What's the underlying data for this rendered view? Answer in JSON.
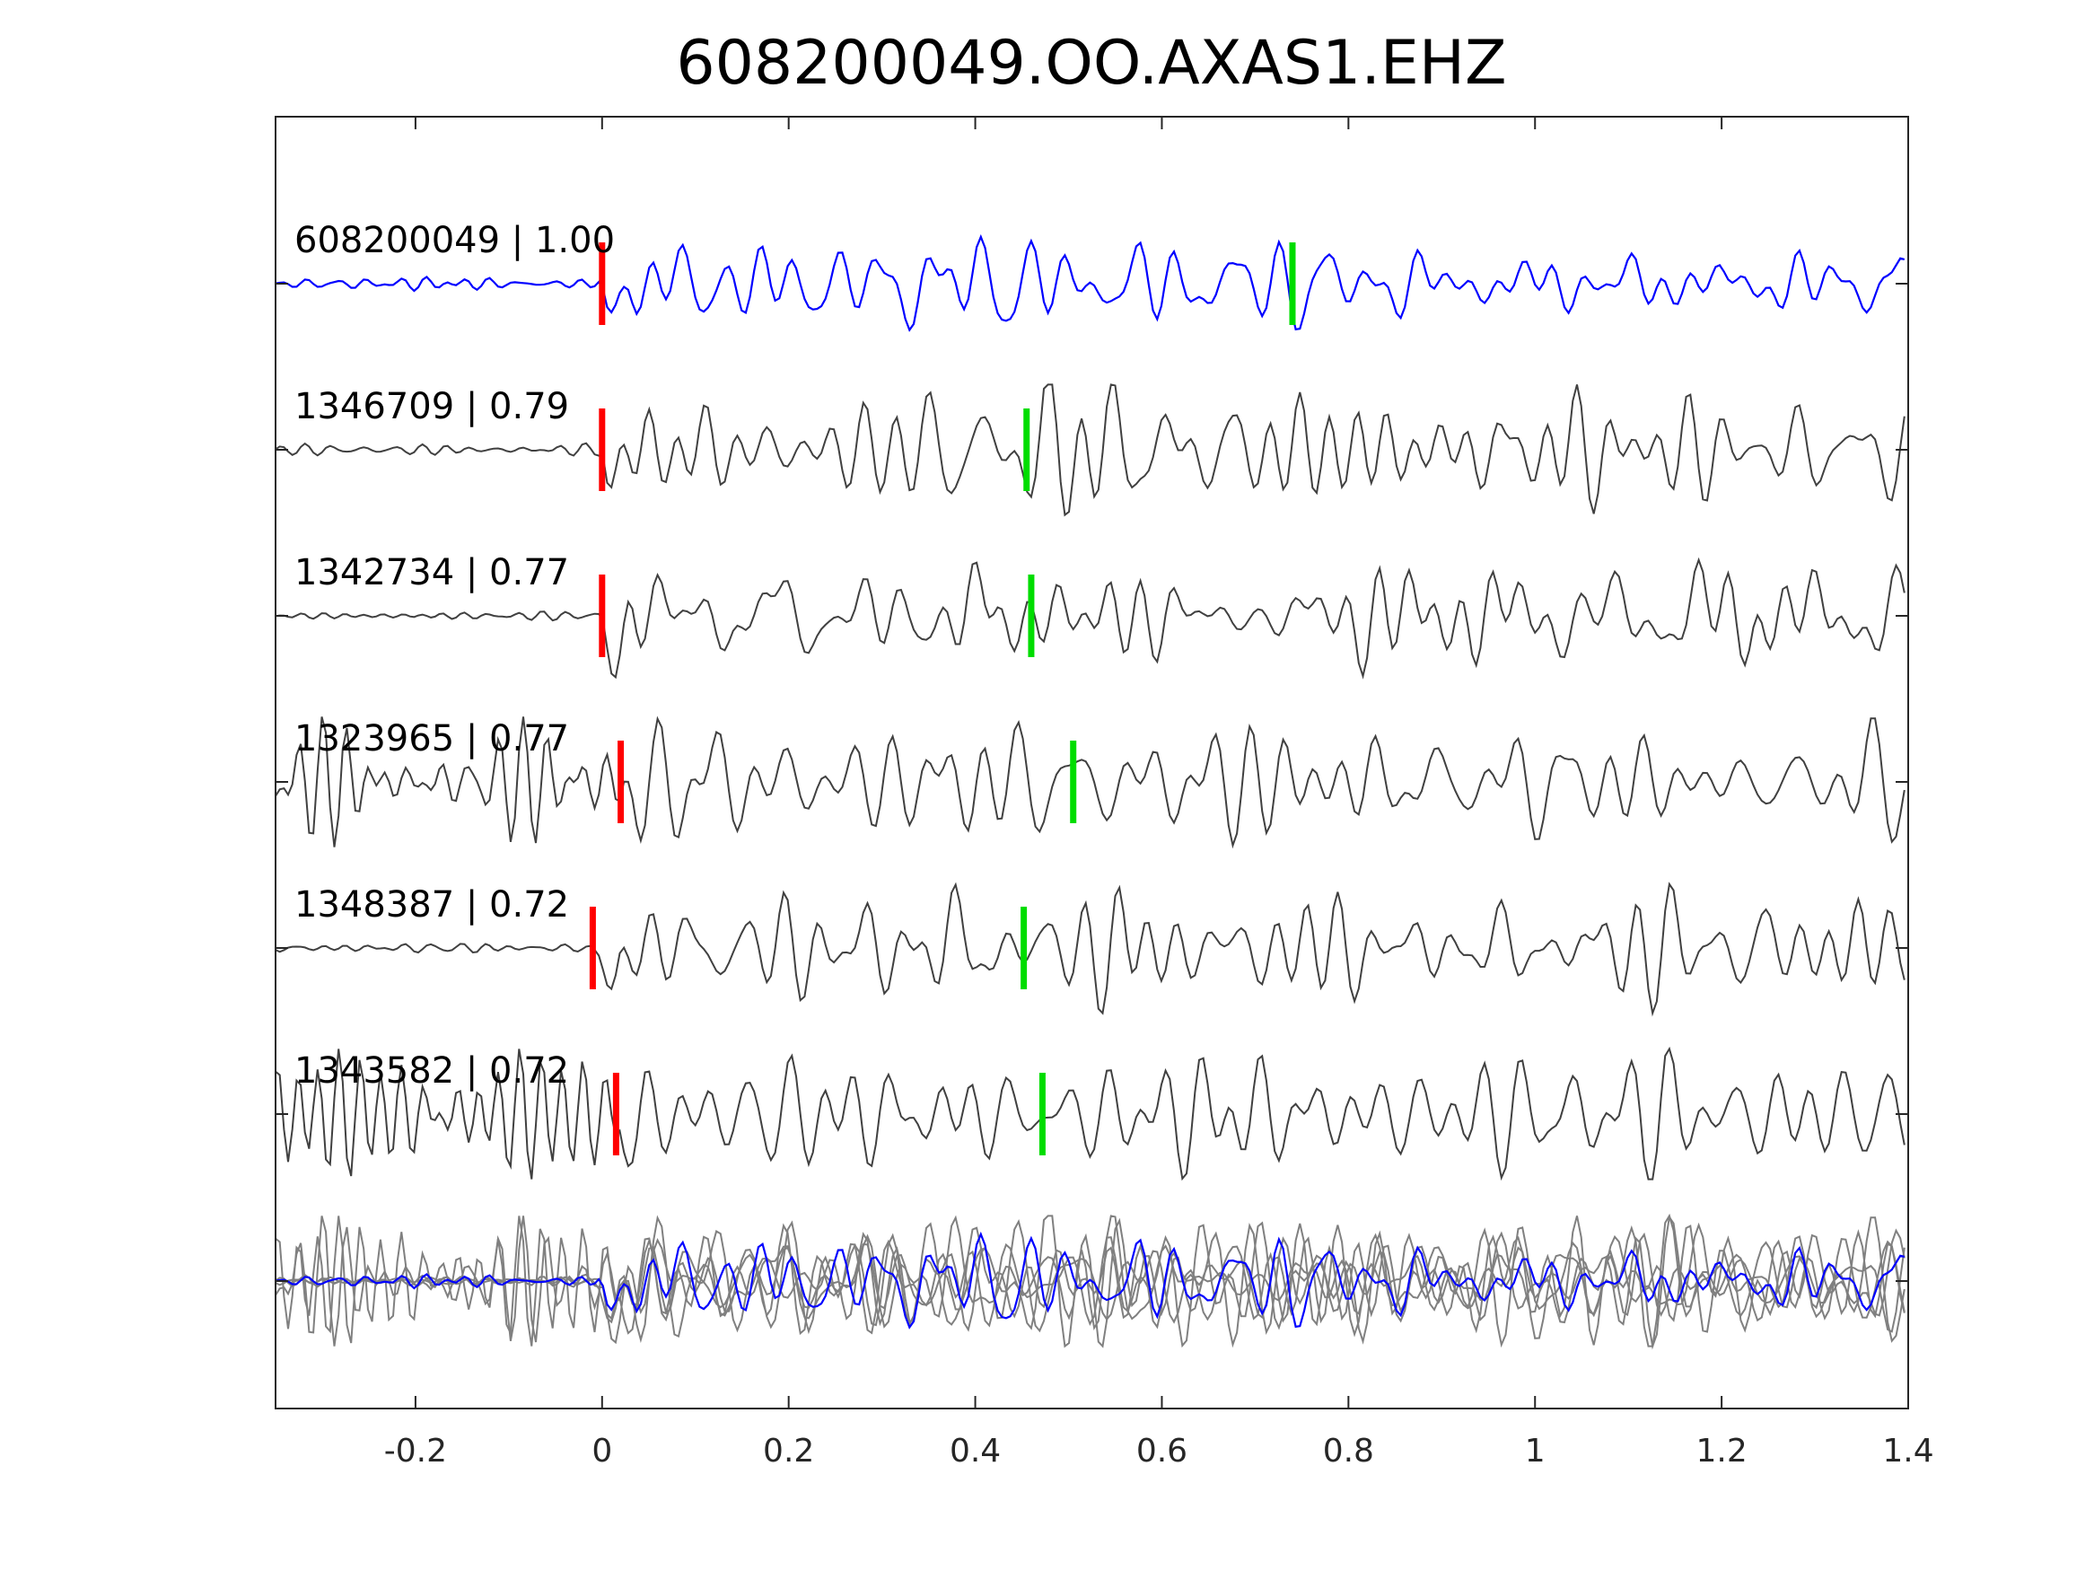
{
  "colors": {
    "reference": "#0000ff",
    "traces": "#404040",
    "stack": "#808080",
    "p_pick": "#ff0000",
    "s_pick": "#00dd00",
    "axes": "#262626"
  },
  "chart_data": {
    "type": "line",
    "title": "608200049.OO.AXAS1.EHZ",
    "xlabel": "",
    "ylabel": "",
    "xlim": [
      -0.35,
      1.4
    ],
    "xticks": [
      -0.2,
      0,
      0.2,
      0.4,
      0.6,
      0.8,
      1,
      1.2,
      1.4
    ],
    "xtick_labels": [
      "-0.2",
      "0",
      "0.2",
      "0.4",
      "0.6",
      "0.8",
      "1",
      "1.2",
      "1.4"
    ],
    "grid": false,
    "series": [
      {
        "name": "608200049",
        "label": "608200049 | 1.00",
        "correlation": 1.0,
        "p_pick": 0.0,
        "s_pick": 0.74
      },
      {
        "name": "1346709",
        "label": "1346709 | 0.79",
        "correlation": 0.79,
        "p_pick": 0.0,
        "s_pick": 0.455
      },
      {
        "name": "1342734",
        "label": "1342734 | 0.77",
        "correlation": 0.77,
        "p_pick": 0.0,
        "s_pick": 0.46
      },
      {
        "name": "1323965",
        "label": "1323965 | 0.77",
        "correlation": 0.77,
        "p_pick": 0.02,
        "s_pick": 0.505
      },
      {
        "name": "1348387",
        "label": "1348387 | 0.72",
        "correlation": 0.72,
        "p_pick": -0.01,
        "s_pick": 0.452
      },
      {
        "name": "1343582",
        "label": "1343582 | 0.72",
        "correlation": 0.72,
        "p_pick": 0.015,
        "s_pick": 0.472
      }
    ],
    "stack": {
      "description": "overlay of all traces, reference in blue"
    }
  }
}
